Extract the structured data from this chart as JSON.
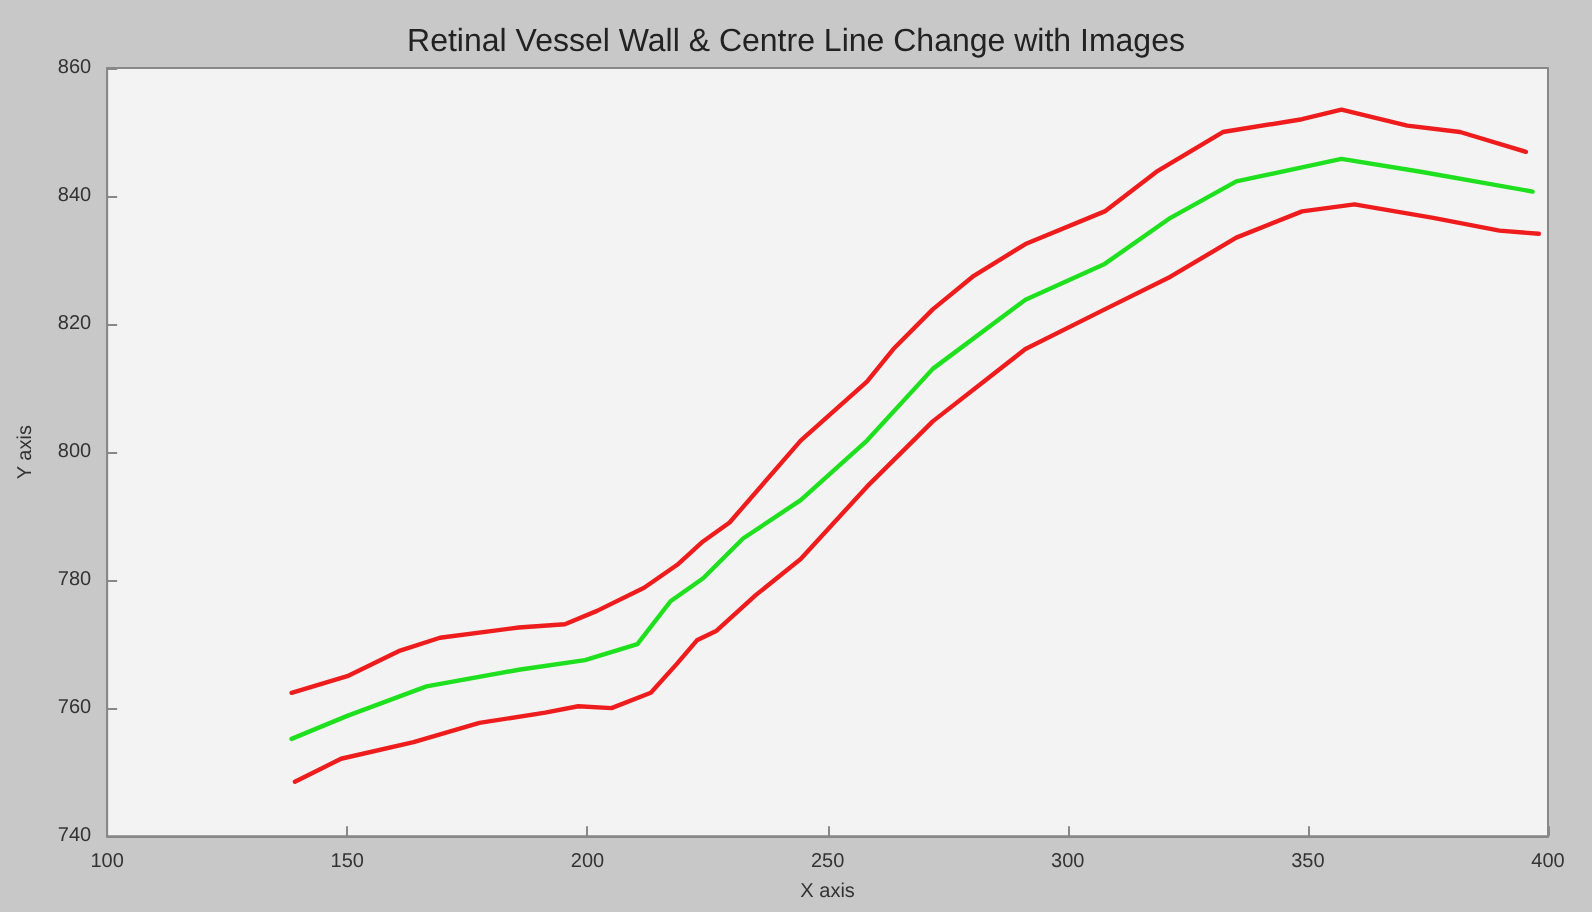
{
  "chart_data": {
    "type": "line",
    "title": "Retinal Vessel Wall & Centre Line Change with Images",
    "xlabel": "X axis",
    "ylabel": "Y axis",
    "xlim": [
      100,
      400
    ],
    "xticks": [
      100,
      150,
      200,
      250,
      300,
      350,
      400
    ],
    "ylim": [
      740,
      860
    ],
    "yticks": [
      740,
      760,
      780,
      800,
      820,
      840,
      860
    ],
    "grid": false,
    "marker": "none",
    "line_style": "solid",
    "series": [
      {
        "color": "#ee1c1c",
        "x": [
          138.4,
          150,
          161,
          169.3,
          185.7,
          195.3,
          202,
          211.8,
          218.7,
          224,
          229.6,
          244.4,
          258.2,
          263.7,
          271.9,
          280.2,
          291.2,
          307.7,
          318.5,
          332.3,
          348.8,
          357,
          370.7,
          381.7,
          395.4
        ],
        "values": [
          762.4,
          765,
          769,
          771,
          772.6,
          773.1,
          775.2,
          778.8,
          782.4,
          786,
          789,
          801.8,
          811,
          816.1,
          822.3,
          827.4,
          832.5,
          837.6,
          843.8,
          850,
          852,
          853.5,
          851,
          850,
          846.9
        ]
      },
      {
        "color": "#1ee01e",
        "x": [
          138.4,
          150,
          166.5,
          185.7,
          199.5,
          210.4,
          217.3,
          224.1,
          232.4,
          244.4,
          258.2,
          271.9,
          291.2,
          307.7,
          321.4,
          335.1,
          357,
          373.5,
          396.8
        ],
        "values": [
          755.2,
          758.8,
          763.4,
          766,
          767.5,
          770,
          776.7,
          780.3,
          786.5,
          792.5,
          801.8,
          813,
          823.8,
          829.4,
          836.6,
          842.3,
          845.8,
          843.8,
          840.7
        ]
      },
      {
        "color": "#ee1c1c",
        "x": [
          139.1,
          148.7,
          163.8,
          177.5,
          191.2,
          198.1,
          205,
          213.2,
          218.7,
          222.8,
          226.9,
          235.1,
          244.4,
          258.2,
          271.9,
          291.2,
          307.7,
          321.4,
          335.1,
          348.8,
          359.7,
          376.1,
          389.9,
          398.1
        ],
        "values": [
          748.5,
          752.1,
          754.7,
          757.7,
          759.3,
          760.3,
          760,
          762.4,
          767,
          770.6,
          772.1,
          777.7,
          783.3,
          794.6,
          804.8,
          816.1,
          822.3,
          827.4,
          833.5,
          837.6,
          838.7,
          836.6,
          834.6,
          834.1
        ]
      }
    ]
  }
}
